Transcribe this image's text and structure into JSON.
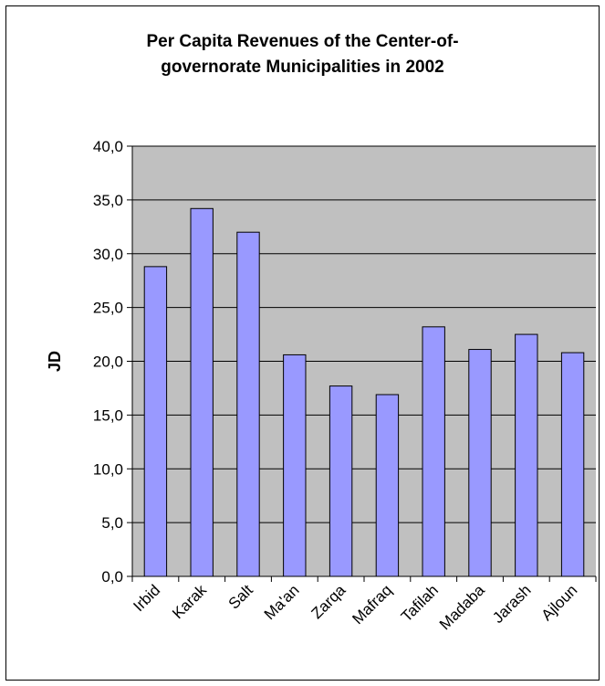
{
  "chart_data": {
    "type": "bar",
    "title_lines": [
      "Per Capita Revenues of the Center-of-",
      "governorate Municipalities in 2002"
    ],
    "xlabel": "",
    "ylabel": "JD",
    "categories": [
      "Irbid",
      "Karak",
      "Salt",
      "Ma'an",
      "Zarqa",
      "Mafraq",
      "Tafilah",
      "Madaba",
      "Jarash",
      "Ajloun"
    ],
    "values": [
      28.8,
      34.2,
      32.0,
      20.6,
      17.7,
      16.9,
      23.2,
      21.1,
      22.5,
      20.8
    ],
    "ylim": [
      0,
      40
    ],
    "yticks": [
      "0,0",
      "5,0",
      "10,0",
      "15,0",
      "20,0",
      "25,0",
      "30,0",
      "35,0",
      "40,0"
    ],
    "grid": true,
    "colors": {
      "bar_fill": "#9999ff",
      "bar_stroke": "#000000",
      "plot_bg": "#c0c0c0",
      "grid": "#000000"
    }
  }
}
